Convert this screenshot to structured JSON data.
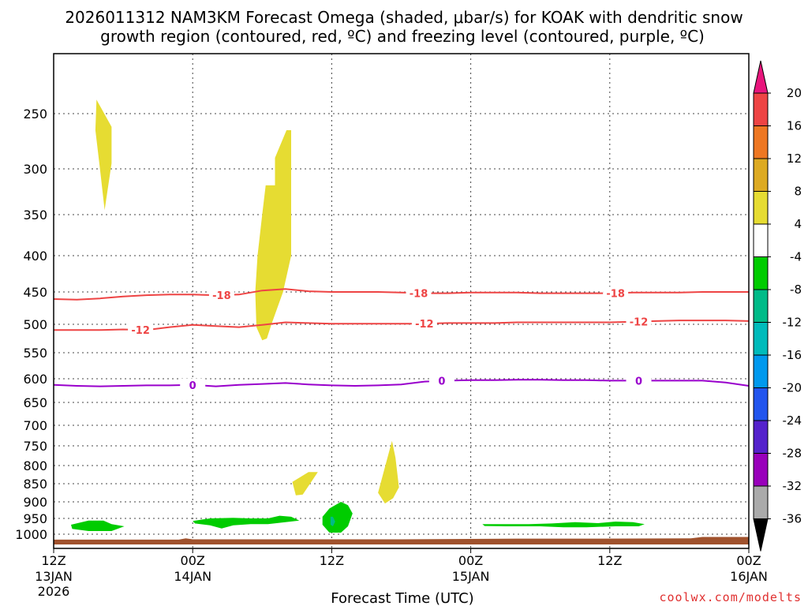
{
  "chart_data": {
    "type": "time-height cross section",
    "title_line1": "2026011312 NAM3KM Forecast Omega (shaded, μbar/s) for KOAK with dendritic snow",
    "title_line2": "growth region (contoured, red, ºC) and freezing level (contoured, purple, ºC)",
    "xlabel": "Forecast Time (UTC)",
    "credit": "coolwx.com/modelts",
    "x_range_hours": [
      0,
      60
    ],
    "y_range_hpa": [
      200,
      1020
    ],
    "x_ticks": [
      {
        "hour": 0,
        "line1": "12Z",
        "line2": "13JAN",
        "line3": "2026"
      },
      {
        "hour": 12,
        "line1": "00Z",
        "line2": "14JAN",
        "line3": ""
      },
      {
        "hour": 24,
        "line1": "12Z",
        "line2": "",
        "line3": ""
      },
      {
        "hour": 36,
        "line1": "00Z",
        "line2": "15JAN",
        "line3": ""
      },
      {
        "hour": 48,
        "line1": "12Z",
        "line2": "",
        "line3": ""
      },
      {
        "hour": 60,
        "line1": "00Z",
        "line2": "16JAN",
        "line3": ""
      }
    ],
    "y_ticks": [
      "250",
      "300",
      "350",
      "400",
      "450",
      "500",
      "550",
      "600",
      "650",
      "700",
      "750",
      "800",
      "850",
      "900",
      "950",
      "1000"
    ],
    "colorbar": {
      "labels": [
        "20",
        "16",
        "12",
        "8",
        "4",
        "-4",
        "-8",
        "-12",
        "-16",
        "-20",
        "-24",
        "-28",
        "-32",
        "-36"
      ],
      "colors": [
        "#e8157c",
        "#ee4444",
        "#ee7722",
        "#ddaa22",
        "#e6dc32",
        "#ffffff",
        "#00cc00",
        "#00bb88",
        "#00bbbb",
        "#0099ee",
        "#2255ee",
        "#5522cc",
        "#9900bb",
        "#aaaaaa",
        "#000000"
      ]
    },
    "series": [
      {
        "name": "dgz -18C",
        "label": "-18",
        "color": "#ee4444",
        "x": [
          0,
          2,
          4,
          6,
          8,
          10,
          12,
          14,
          16,
          18,
          20,
          22,
          24,
          26,
          28,
          30,
          32,
          34,
          36,
          38,
          40,
          42,
          44,
          46,
          48,
          50,
          52,
          54,
          56,
          58,
          60
        ],
        "y": [
          461,
          462,
          460,
          457,
          455,
          454,
          454,
          455,
          454,
          448,
          446,
          449,
          450,
          450,
          450,
          451,
          452,
          452,
          451,
          451,
          451,
          452,
          452,
          452,
          452,
          451,
          451,
          451,
          450,
          450,
          450
        ],
        "label_hours": [
          14.5,
          31.5,
          48.5
        ]
      },
      {
        "name": "dgz -12C",
        "label": "-12",
        "color": "#ee4444",
        "x": [
          0,
          2,
          4,
          6,
          8,
          10,
          12,
          14,
          16,
          18,
          20,
          22,
          24,
          26,
          28,
          30,
          32,
          34,
          36,
          38,
          40,
          42,
          44,
          46,
          48,
          50,
          52,
          54,
          56,
          58,
          60
        ],
        "y": [
          510,
          510,
          510,
          509,
          510,
          505,
          501,
          503,
          505,
          501,
          497,
          498,
          499,
          499,
          499,
          499,
          499,
          498,
          498,
          498,
          497,
          497,
          497,
          497,
          497,
          496,
          495,
          494,
          494,
          494,
          495
        ],
        "label_hours": [
          7.5,
          32.0,
          50.5
        ]
      },
      {
        "name": "freezing level 0C",
        "label": "0",
        "color": "#9900cc",
        "x": [
          0,
          2,
          4,
          6,
          8,
          10,
          12,
          14,
          16,
          18,
          20,
          22,
          24,
          26,
          28,
          30,
          32,
          34,
          36,
          38,
          40,
          42,
          44,
          46,
          48,
          50,
          52,
          54,
          56,
          58,
          60
        ],
        "y": [
          613,
          615,
          616,
          615,
          614,
          614,
          613,
          616,
          613,
          611,
          609,
          612,
          614,
          615,
          614,
          612,
          606,
          604,
          603,
          603,
          602,
          602,
          603,
          603,
          604,
          604,
          604,
          604,
          604,
          608,
          615
        ],
        "label_hours": [
          12.0,
          33.5,
          50.5
        ]
      }
    ],
    "shaded_regions": [
      {
        "value": "4 to 8",
        "color": "#e6dc32",
        "points": [
          [
            3.7,
            237
          ],
          [
            5.0,
            262
          ],
          [
            5.0,
            295
          ],
          [
            4.4,
            345
          ],
          [
            4.0,
            300
          ],
          [
            3.6,
            265
          ]
        ]
      },
      {
        "name": "upper",
        "value": "4 to 8",
        "color": "#e6dc32",
        "points": [
          [
            20.1,
            265
          ],
          [
            20.5,
            265
          ],
          [
            20.5,
            400
          ],
          [
            19.8,
            450
          ],
          [
            18.8,
            500
          ],
          [
            18.4,
            525
          ],
          [
            18.0,
            528
          ],
          [
            17.5,
            505
          ],
          [
            17.4,
            450
          ],
          [
            17.6,
            400
          ],
          [
            18.0,
            350
          ],
          [
            18.3,
            318
          ],
          [
            19.1,
            318
          ],
          [
            19.1,
            290
          ]
        ]
      },
      {
        "value": "4 to 8",
        "color": "#e6dc32",
        "points": [
          [
            22.0,
            818
          ],
          [
            22.8,
            818
          ],
          [
            21.5,
            880
          ],
          [
            20.9,
            882
          ],
          [
            20.6,
            845
          ]
        ]
      },
      {
        "value": "4 to 8",
        "color": "#e6dc32",
        "points": [
          [
            29.2,
            738
          ],
          [
            29.5,
            780
          ],
          [
            29.8,
            860
          ],
          [
            29.3,
            890
          ],
          [
            28.6,
            905
          ],
          [
            28.0,
            875
          ]
        ]
      },
      {
        "value": "-8 to -4",
        "color": "#00cc00",
        "points": [
          [
            1.5,
            970
          ],
          [
            3.0,
            957
          ],
          [
            4.3,
            957
          ],
          [
            5.0,
            968
          ],
          [
            6.1,
            975
          ],
          [
            5.0,
            990
          ],
          [
            3.0,
            990
          ],
          [
            1.6,
            983
          ]
        ]
      },
      {
        "value": "-8 to -4",
        "color": "#00cc00",
        "points": [
          [
            12.0,
            958
          ],
          [
            13.5,
            950
          ],
          [
            15.5,
            948
          ],
          [
            17.0,
            950
          ],
          [
            18.5,
            950
          ],
          [
            19.5,
            942
          ],
          [
            20.5,
            945
          ],
          [
            21.2,
            957
          ],
          [
            20.0,
            962
          ],
          [
            18.5,
            968
          ],
          [
            17.0,
            968
          ],
          [
            15.5,
            972
          ],
          [
            14.5,
            982
          ],
          [
            13.5,
            972
          ],
          [
            12.2,
            966
          ]
        ]
      },
      {
        "value": "-8 to -4",
        "color": "#00cc00",
        "points": [
          [
            23.8,
            920
          ],
          [
            24.8,
            900
          ],
          [
            25.4,
            910
          ],
          [
            25.8,
            935
          ],
          [
            25.4,
            975
          ],
          [
            24.8,
            995
          ],
          [
            23.8,
            995
          ],
          [
            23.2,
            970
          ],
          [
            23.2,
            945
          ]
        ]
      },
      {
        "value": "-12 to -8",
        "color": "#00bb88",
        "points": [
          [
            23.9,
            945
          ],
          [
            24.1,
            945
          ],
          [
            24.3,
            960
          ],
          [
            24.1,
            975
          ],
          [
            23.9,
            970
          ]
        ]
      },
      {
        "value": "-8 to -4",
        "color": "#00cc00",
        "points": [
          [
            37.0,
            968
          ],
          [
            39.0,
            968
          ],
          [
            41.0,
            968
          ],
          [
            43.0,
            966
          ],
          [
            45.0,
            962
          ],
          [
            47.0,
            965
          ],
          [
            48.5,
            960
          ],
          [
            50.0,
            962
          ],
          [
            51.0,
            968
          ],
          [
            50.5,
            975
          ],
          [
            48.5,
            975
          ],
          [
            46.0,
            978
          ],
          [
            44.0,
            978
          ],
          [
            42.0,
            975
          ],
          [
            39.0,
            975
          ],
          [
            37.2,
            974
          ]
        ]
      }
    ],
    "terrain": {
      "color": "#a0522d",
      "points": [
        [
          0,
          1016
        ],
        [
          10.8,
          1016
        ],
        [
          11.4,
          1012
        ],
        [
          12.0,
          1015
        ],
        [
          30.0,
          1015
        ],
        [
          40.0,
          1013
        ],
        [
          47.0,
          1013
        ],
        [
          55.0,
          1012
        ],
        [
          56.0,
          1008
        ],
        [
          60.0,
          1008
        ],
        [
          60.0,
          1030
        ],
        [
          0,
          1030
        ]
      ]
    }
  }
}
